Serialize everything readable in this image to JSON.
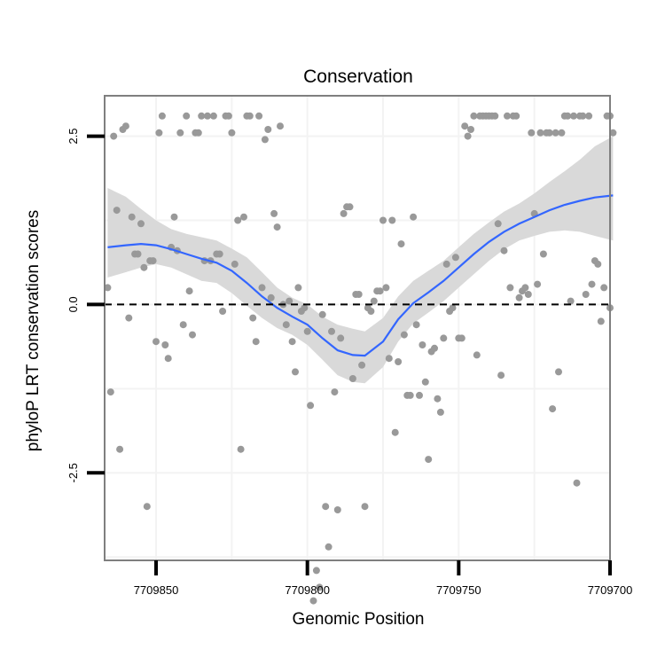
{
  "chart_data": {
    "type": "scatter",
    "title": "Conservation",
    "xlabel": "Genomic Position",
    "ylabel": "phyloP LRT conservation scores",
    "x_reversed": true,
    "xlim": [
      7709700,
      7709867
    ],
    "ylim": [
      -3.8,
      3.1
    ],
    "x_ticks": [
      7709850,
      7709800,
      7709750,
      7709700
    ],
    "x_tick_labels": [
      "7709850",
      "7709800",
      "7709750",
      "7709700"
    ],
    "y_ticks": [
      2.5,
      0.0,
      -2.5
    ],
    "y_tick_labels": [
      "2.5",
      "0.0",
      "-2.5"
    ],
    "reference_line": {
      "y": 0,
      "style": "dashed"
    },
    "colors": {
      "points": "#999999",
      "smooth": "#3366ff",
      "ribbon": "#d9d9d9",
      "grid": "#f3f3f3",
      "frame": "#7f7f7f"
    },
    "series": [
      {
        "name": "phyloP scores",
        "kind": "points",
        "points": [
          [
            7709866,
            0.25
          ],
          [
            7709865,
            -1.3
          ],
          [
            7709864,
            2.5
          ],
          [
            7709863,
            1.4
          ],
          [
            7709862,
            -2.15
          ],
          [
            7709861,
            2.6
          ],
          [
            7709860,
            2.65
          ],
          [
            7709859,
            -0.2
          ],
          [
            7709858,
            1.3
          ],
          [
            7709857,
            0.75
          ],
          [
            7709856,
            0.75
          ],
          [
            7709855,
            1.2
          ],
          [
            7709854,
            0.55
          ],
          [
            7709853,
            -3.0
          ],
          [
            7709852,
            0.65
          ],
          [
            7709851,
            0.65
          ],
          [
            7709850,
            -0.55
          ],
          [
            7709849,
            2.55
          ],
          [
            7709848,
            2.8
          ],
          [
            7709847,
            -0.6
          ],
          [
            7709846,
            -0.8
          ],
          [
            7709845,
            0.85
          ],
          [
            7709844,
            1.3
          ],
          [
            7709843,
            0.8
          ],
          [
            7709842,
            2.55
          ],
          [
            7709841,
            -0.3
          ],
          [
            7709840,
            2.8
          ],
          [
            7709839,
            0.2
          ],
          [
            7709838,
            -0.45
          ],
          [
            7709837,
            2.55
          ],
          [
            7709836,
            2.55
          ],
          [
            7709835,
            2.8
          ],
          [
            7709834,
            0.65
          ],
          [
            7709833,
            2.8
          ],
          [
            7709832,
            0.65
          ],
          [
            7709831,
            2.8
          ],
          [
            7709830,
            0.75
          ],
          [
            7709829,
            0.75
          ],
          [
            7709828,
            -0.1
          ],
          [
            7709827,
            2.8
          ],
          [
            7709826,
            2.8
          ],
          [
            7709825,
            2.55
          ],
          [
            7709824,
            0.6
          ],
          [
            7709823,
            1.25
          ],
          [
            7709822,
            -2.15
          ],
          [
            7709821,
            1.3
          ],
          [
            7709820,
            2.8
          ],
          [
            7709819,
            2.8
          ],
          [
            7709818,
            -0.2
          ],
          [
            7709817,
            -0.55
          ],
          [
            7709816,
            2.8
          ],
          [
            7709815,
            0.25
          ],
          [
            7709814,
            2.45
          ],
          [
            7709813,
            2.6
          ],
          [
            7709812,
            0.1
          ],
          [
            7709811,
            1.35
          ],
          [
            7709810,
            1.15
          ],
          [
            7709809,
            2.65
          ],
          [
            7709808,
            0.0
          ],
          [
            7709807,
            -0.3
          ],
          [
            7709806,
            0.05
          ],
          [
            7709805,
            -0.55
          ],
          [
            7709804,
            -1.0
          ],
          [
            7709803,
            0.25
          ],
          [
            7709802,
            -0.1
          ],
          [
            7709801,
            -0.05
          ],
          [
            7709800,
            -0.4
          ],
          [
            7709799,
            -1.5
          ],
          [
            7709798,
            -4.4
          ],
          [
            7709797,
            -3.95
          ],
          [
            7709796,
            -4.2
          ],
          [
            7709795,
            -0.15
          ],
          [
            7709794,
            -3.0
          ],
          [
            7709793,
            -3.6
          ],
          [
            7709792,
            -0.4
          ],
          [
            7709791,
            -1.3
          ],
          [
            7709790,
            -3.05
          ],
          [
            7709789,
            -0.5
          ],
          [
            7709788,
            1.35
          ],
          [
            7709787,
            1.45
          ],
          [
            7709786,
            1.45
          ],
          [
            7709785,
            -1.1
          ],
          [
            7709784,
            0.15
          ],
          [
            7709783,
            0.15
          ],
          [
            7709782,
            -0.9
          ],
          [
            7709781,
            -3.0
          ],
          [
            7709780,
            -0.05
          ],
          [
            7709779,
            -0.1
          ],
          [
            7709778,
            0.05
          ],
          [
            7709777,
            0.2
          ],
          [
            7709776,
            0.2
          ],
          [
            7709775,
            1.25
          ],
          [
            7709774,
            0.25
          ],
          [
            7709773,
            -0.8
          ],
          [
            7709772,
            1.25
          ],
          [
            7709771,
            -1.9
          ],
          [
            7709770,
            -0.85
          ],
          [
            7709769,
            0.9
          ],
          [
            7709768,
            -0.45
          ],
          [
            7709767,
            -1.35
          ],
          [
            7709766,
            -1.35
          ],
          [
            7709765,
            1.3
          ],
          [
            7709764,
            -0.3
          ],
          [
            7709763,
            -1.35
          ],
          [
            7709762,
            -0.6
          ],
          [
            7709761,
            -1.15
          ],
          [
            7709760,
            -2.3
          ],
          [
            7709759,
            -0.7
          ],
          [
            7709758,
            -0.65
          ],
          [
            7709757,
            -1.4
          ],
          [
            7709756,
            -1.6
          ],
          [
            7709755,
            -0.5
          ],
          [
            7709754,
            0.6
          ],
          [
            7709753,
            -0.1
          ],
          [
            7709752,
            -0.05
          ],
          [
            7709751,
            0.7
          ],
          [
            7709750,
            -0.5
          ],
          [
            7709749,
            -0.5
          ],
          [
            7709748,
            2.65
          ],
          [
            7709747,
            2.5
          ],
          [
            7709746,
            2.6
          ],
          [
            7709745,
            2.8
          ],
          [
            7709744,
            -0.75
          ],
          [
            7709743,
            2.8
          ],
          [
            7709742,
            2.8
          ],
          [
            7709741,
            2.8
          ],
          [
            7709740,
            2.8
          ],
          [
            7709739,
            2.8
          ],
          [
            7709738,
            2.8
          ],
          [
            7709737,
            1.2
          ],
          [
            7709736,
            -1.05
          ],
          [
            7709735,
            0.8
          ],
          [
            7709734,
            2.8
          ],
          [
            7709733,
            0.25
          ],
          [
            7709732,
            2.8
          ],
          [
            7709731,
            2.8
          ],
          [
            7709730,
            0.1
          ],
          [
            7709729,
            0.2
          ],
          [
            7709728,
            0.25
          ],
          [
            7709727,
            0.15
          ],
          [
            7709726,
            2.55
          ],
          [
            7709725,
            1.35
          ],
          [
            7709724,
            0.3
          ],
          [
            7709723,
            2.55
          ],
          [
            7709722,
            0.75
          ],
          [
            7709721,
            2.55
          ],
          [
            7709720,
            2.55
          ],
          [
            7709719,
            -1.55
          ],
          [
            7709718,
            2.55
          ],
          [
            7709717,
            -1.0
          ],
          [
            7709716,
            2.55
          ],
          [
            7709715,
            2.8
          ],
          [
            7709714,
            2.8
          ],
          [
            7709713,
            0.05
          ],
          [
            7709712,
            2.8
          ],
          [
            7709711,
            -2.65
          ],
          [
            7709710,
            2.8
          ],
          [
            7709709,
            2.8
          ],
          [
            7709708,
            0.15
          ],
          [
            7709707,
            2.8
          ],
          [
            7709706,
            0.3
          ],
          [
            7709705,
            0.65
          ],
          [
            7709704,
            0.6
          ],
          [
            7709703,
            -0.25
          ],
          [
            7709702,
            0.25
          ],
          [
            7709701,
            2.8
          ],
          [
            7709700,
            2.8
          ],
          [
            7709700,
            -0.05
          ],
          [
            7709699,
            2.55
          ]
        ]
      },
      {
        "name": "smooth fit",
        "kind": "line",
        "points": [
          [
            7709866,
            0.85
          ],
          [
            7709860,
            0.88
          ],
          [
            7709855,
            0.9
          ],
          [
            7709850,
            0.88
          ],
          [
            7709845,
            0.82
          ],
          [
            7709840,
            0.75
          ],
          [
            7709835,
            0.68
          ],
          [
            7709830,
            0.62
          ],
          [
            7709825,
            0.5
          ],
          [
            7709820,
            0.32
          ],
          [
            7709815,
            0.12
          ],
          [
            7709810,
            -0.05
          ],
          [
            7709805,
            -0.18
          ],
          [
            7709800,
            -0.3
          ],
          [
            7709795,
            -0.5
          ],
          [
            7709790,
            -0.68
          ],
          [
            7709785,
            -0.75
          ],
          [
            7709781,
            -0.76
          ],
          [
            7709775,
            -0.55
          ],
          [
            7709770,
            -0.22
          ],
          [
            7709765,
            0.02
          ],
          [
            7709760,
            0.18
          ],
          [
            7709755,
            0.35
          ],
          [
            7709750,
            0.55
          ],
          [
            7709745,
            0.75
          ],
          [
            7709740,
            0.93
          ],
          [
            7709735,
            1.08
          ],
          [
            7709730,
            1.2
          ],
          [
            7709725,
            1.3
          ],
          [
            7709720,
            1.4
          ],
          [
            7709715,
            1.48
          ],
          [
            7709710,
            1.54
          ],
          [
            7709705,
            1.59
          ],
          [
            7709699,
            1.62
          ]
        ]
      },
      {
        "name": "confidence band",
        "kind": "ribbon",
        "points": [
          [
            7709866,
            0.4,
            1.73
          ],
          [
            7709860,
            0.48,
            1.6
          ],
          [
            7709855,
            0.55,
            1.42
          ],
          [
            7709850,
            0.6,
            1.25
          ],
          [
            7709845,
            0.55,
            1.12
          ],
          [
            7709840,
            0.45,
            1.05
          ],
          [
            7709835,
            0.35,
            1.0
          ],
          [
            7709830,
            0.32,
            0.95
          ],
          [
            7709825,
            0.17,
            0.83
          ],
          [
            7709820,
            -0.02,
            0.7
          ],
          [
            7709815,
            -0.2,
            0.48
          ],
          [
            7709810,
            -0.35,
            0.25
          ],
          [
            7709805,
            -0.45,
            0.1
          ],
          [
            7709800,
            -0.6,
            0.0
          ],
          [
            7709795,
            -0.82,
            -0.18
          ],
          [
            7709790,
            -1.05,
            -0.3
          ],
          [
            7709785,
            -1.15,
            -0.36
          ],
          [
            7709781,
            -1.17,
            -0.4
          ],
          [
            7709775,
            -0.93,
            -0.2
          ],
          [
            7709770,
            -0.55,
            0.12
          ],
          [
            7709765,
            -0.28,
            0.35
          ],
          [
            7709760,
            -0.12,
            0.5
          ],
          [
            7709755,
            0.05,
            0.65
          ],
          [
            7709750,
            0.25,
            0.85
          ],
          [
            7709745,
            0.45,
            1.05
          ],
          [
            7709740,
            0.65,
            1.22
          ],
          [
            7709735,
            0.82,
            1.38
          ],
          [
            7709730,
            0.95,
            1.5
          ],
          [
            7709725,
            1.02,
            1.65
          ],
          [
            7709720,
            1.08,
            1.82
          ],
          [
            7709715,
            1.1,
            1.98
          ],
          [
            7709710,
            1.08,
            2.15
          ],
          [
            7709705,
            1.02,
            2.35
          ],
          [
            7709699,
            0.95,
            2.5
          ]
        ]
      }
    ]
  }
}
